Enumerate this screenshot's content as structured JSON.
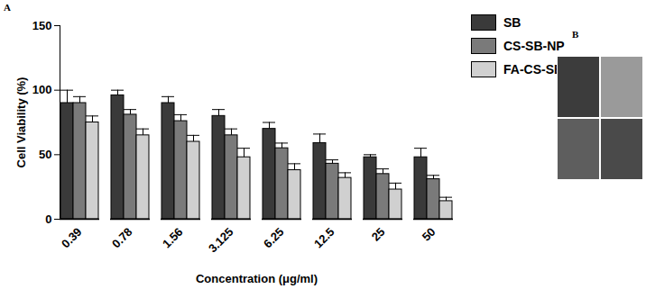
{
  "chart_data": {
    "type": "bar",
    "xlabel": "Concentration (μg/ml)",
    "ylabel": "Cell Viability (%)",
    "categories": [
      "0.39",
      "0.78",
      "1.56",
      "3.125",
      "6.25",
      "12.5",
      "25",
      "50"
    ],
    "series": [
      {
        "name": "SB",
        "color": "#3a3a3a",
        "values": [
          90,
          96,
          90,
          80,
          70,
          59,
          48,
          48
        ],
        "errors": [
          10,
          4,
          5,
          5,
          5,
          7,
          2,
          7
        ]
      },
      {
        "name": "CS-SB-NP",
        "color": "#7a7a7a",
        "values": [
          90,
          81,
          76,
          65,
          55,
          43,
          35,
          31
        ],
        "errors": [
          5,
          4,
          5,
          5,
          4,
          3,
          4,
          3
        ]
      },
      {
        "name": "FA-CS-SB-NP",
        "color": "#d0d0d0",
        "values": [
          75,
          65,
          60,
          48,
          38,
          32,
          23,
          14
        ],
        "errors": [
          5,
          5,
          5,
          7,
          5,
          4,
          5,
          3
        ]
      }
    ],
    "ylim": [
      0,
      150
    ],
    "yticks": [
      0,
      50,
      100,
      150
    ],
    "legend": "right",
    "annotations": [
      "A",
      "B"
    ]
  }
}
